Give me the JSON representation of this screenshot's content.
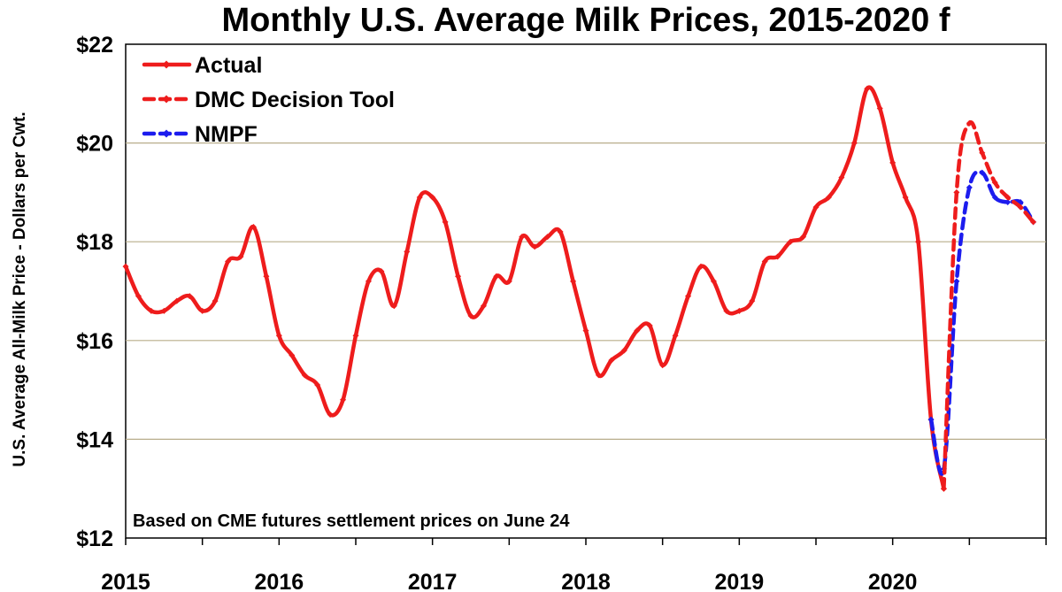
{
  "chart_data": {
    "type": "line",
    "title": "Monthly U.S. Average Milk Prices, 2015-2020 f",
    "ylabel": "U.S. Average All-Milk Price - Dollars per Cwt.",
    "xlabel": "",
    "ylim": [
      12,
      22
    ],
    "yticks": [
      12,
      14,
      16,
      18,
      20,
      22
    ],
    "ytick_labels": [
      "$12",
      "$14",
      "$16",
      "$18",
      "$20",
      "$22"
    ],
    "xticks": [
      2015,
      2016,
      2017,
      2018,
      2019,
      2020
    ],
    "xtick_labels": [
      "2015",
      "2016",
      "2017",
      "2018",
      "2019",
      "2020"
    ],
    "xlim": [
      2015,
      2021
    ],
    "grid": true,
    "legend_position": "top-left",
    "annotation": "Based on CME futures settlement prices on June 24",
    "series": [
      {
        "name": "Actual",
        "color": "#ee1c1c",
        "style": "solid",
        "start_month": 0,
        "values": [
          17.5,
          16.9,
          16.6,
          16.6,
          16.8,
          16.9,
          16.6,
          16.8,
          17.6,
          17.7,
          18.3,
          17.3,
          16.1,
          15.7,
          15.3,
          15.1,
          14.5,
          14.8,
          16.1,
          17.2,
          17.4,
          16.7,
          17.8,
          18.9,
          18.9,
          18.4,
          17.3,
          16.5,
          16.7,
          17.3,
          17.2,
          18.1,
          17.9,
          18.1,
          18.2,
          17.2,
          16.2,
          15.3,
          15.6,
          15.8,
          16.2,
          16.3,
          15.5,
          16.1,
          16.9,
          17.5,
          17.2,
          16.6,
          16.6,
          16.8,
          17.6,
          17.7,
          18.0,
          18.1,
          18.7,
          18.9,
          19.3,
          20.0,
          21.1,
          20.7,
          19.6,
          18.9,
          18.0,
          14.4,
          13.0
        ]
      },
      {
        "name": "DMC Decision Tool",
        "color": "#ee1c1c",
        "style": "dashed",
        "start_month": 64,
        "values": [
          13.0,
          19.0,
          20.4,
          19.8,
          19.2,
          18.9,
          18.7,
          18.4
        ]
      },
      {
        "name": "NMPF",
        "color": "#1c1cee",
        "style": "dashed",
        "start_month": 63,
        "values": [
          14.4,
          13.4,
          17.2,
          19.1,
          19.4,
          18.9,
          18.8,
          18.8,
          18.4
        ]
      }
    ]
  }
}
